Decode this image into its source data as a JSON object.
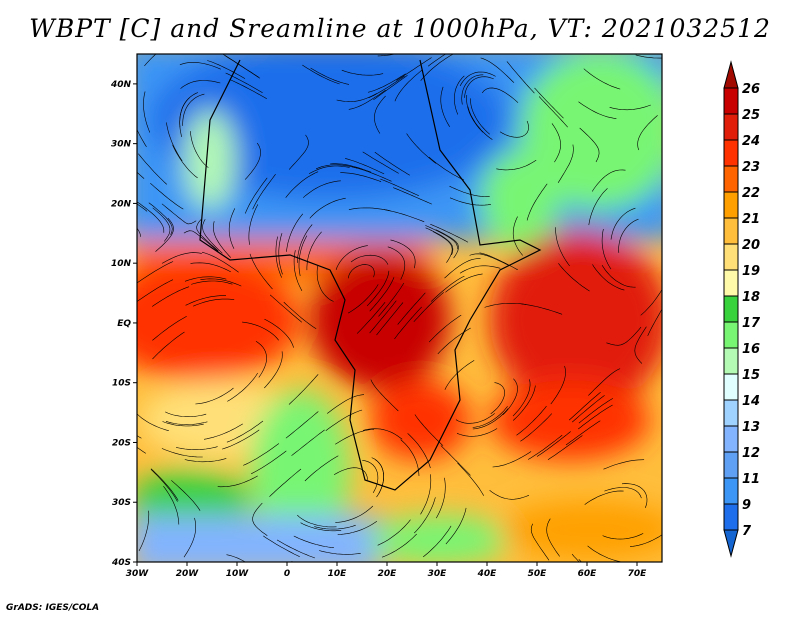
{
  "title": "WBPT [C] and Sreamline at 1000hPa, VT: 2021032512",
  "credit": "GrADS: IGES/COLA",
  "map": {
    "lon_range": [
      -30,
      75
    ],
    "lat_range": [
      -40,
      45
    ],
    "lon_ticks": [
      {
        "value": -30,
        "label": "30W"
      },
      {
        "value": -20,
        "label": "20W"
      },
      {
        "value": -10,
        "label": "10W"
      },
      {
        "value": 0,
        "label": "0"
      },
      {
        "value": 10,
        "label": "10E"
      },
      {
        "value": 20,
        "label": "20E"
      },
      {
        "value": 30,
        "label": "30E"
      },
      {
        "value": 40,
        "label": "40E"
      },
      {
        "value": 50,
        "label": "50E"
      },
      {
        "value": 60,
        "label": "60E"
      },
      {
        "value": 70,
        "label": "70E"
      }
    ],
    "lat_ticks": [
      {
        "value": 40,
        "label": "40N"
      },
      {
        "value": 30,
        "label": "30N"
      },
      {
        "value": 20,
        "label": "20N"
      },
      {
        "value": 10,
        "label": "10N"
      },
      {
        "value": 0,
        "label": "EQ"
      },
      {
        "value": -10,
        "label": "10S"
      },
      {
        "value": -20,
        "label": "20S"
      },
      {
        "value": -30,
        "label": "30S"
      },
      {
        "value": -40,
        "label": "40S"
      }
    ]
  },
  "colorbar": {
    "labels": [
      "26",
      "25",
      "24",
      "23",
      "22",
      "21",
      "20",
      "19",
      "18",
      "17",
      "16",
      "15",
      "14",
      "13",
      "12",
      "11",
      "9",
      "7"
    ],
    "top_arrow_color": "#a00a00",
    "bottom_arrow_color": "#1464d2",
    "band_colors": [
      "#c80000",
      "#e11e0a",
      "#ff3200",
      "#ff6400",
      "#ffa000",
      "#ffbe3c",
      "#ffe078",
      "#fffaaa",
      "#37d23c",
      "#78f573",
      "#b4fab4",
      "#e1ffff",
      "#a0d2ff",
      "#82b4ff",
      "#5fa0f5",
      "#3c96f5",
      "#1e6eeb"
    ]
  }
}
